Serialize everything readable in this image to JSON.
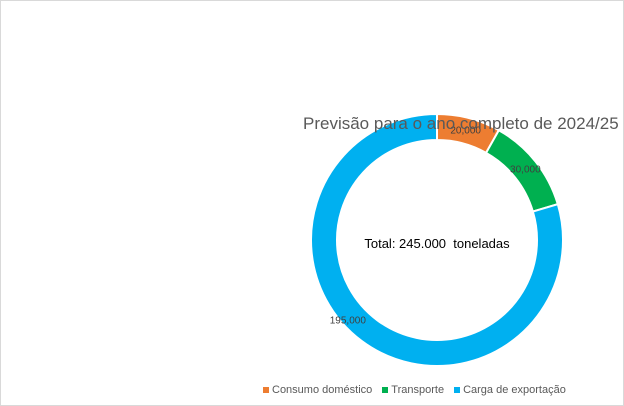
{
  "chart_data": {
    "type": "pie",
    "variant": "donut",
    "title": "Previsão para o ano completo de 2024/25",
    "center_label": "Total: 245.000  toneladas",
    "slices": [
      {
        "name": "Consumo doméstico",
        "value": 20000,
        "label": "20,000",
        "color": "#ed7d31"
      },
      {
        "name": "Transporte",
        "value": 30000,
        "label": "30,000",
        "color": "#00b050"
      },
      {
        "name": "Carga de exportação",
        "value": 195000,
        "label": "195,000",
        "color": "#00b0f0"
      }
    ],
    "legend_position": "bottom"
  }
}
